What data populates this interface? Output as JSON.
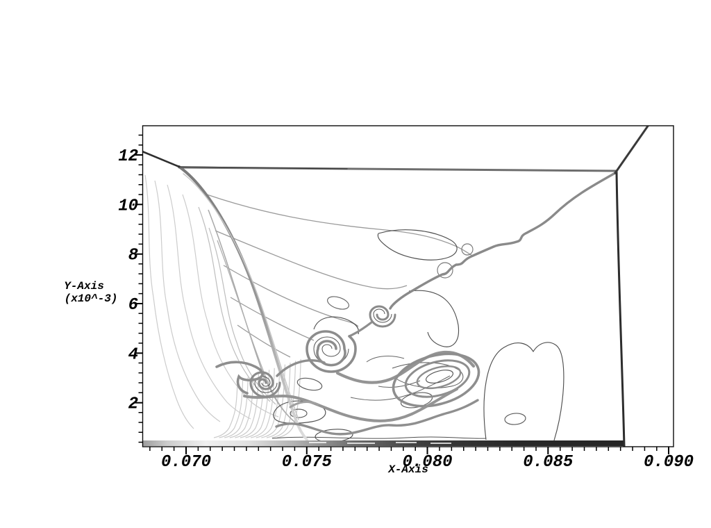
{
  "page": {
    "background": "#ffffff",
    "description": "Grayscale contour plot of a shock-vortex / Richtmyer-Meshkov type flow field with triple point, slip line and rolled-up vortices"
  },
  "axis": {
    "x_label": "X-Axis",
    "y_label": "Y-Axis",
    "y_unit": "(x10^-3)",
    "x_tick_labels": [
      "0.070",
      "0.075",
      "0.080",
      "0.085",
      "0.090"
    ],
    "y_tick_labels": [
      "12",
      "10",
      "8",
      "6",
      "4",
      "2"
    ]
  },
  "colors": {
    "background": "#ffffff",
    "frame": "#0a0a0a",
    "tick": "#000000",
    "thick_contour": "#8e8e8e",
    "thin_contour": "#4f4f4f",
    "light_contour": "#cccccc",
    "strong_shock": "#2f2f2f"
  },
  "chart_data": {
    "type": "heatmap",
    "subtype": "line-contour",
    "title": "",
    "xlabel": "X-Axis",
    "ylabel": "Y-Axis (x10^-3)",
    "xlim": [
      0.0682,
      0.0902
    ],
    "ylim_x1e3": [
      0.2,
      13.2
    ],
    "x_ticks": [
      0.07,
      0.075,
      0.08,
      0.085,
      0.09
    ],
    "x_minor_step": 0.0005,
    "y_ticks_x1e3": [
      12,
      10,
      8,
      6,
      4,
      2
    ],
    "y_minor_step_x1e3": 0.4,
    "grid": false,
    "legend": false,
    "style": "grayscale line contours, no fill",
    "features": [
      {
        "name": "incident-shock-top",
        "shape": "horizontal line",
        "y_x1e3": 11.4,
        "x_range": [
          0.0697,
          0.0878
        ]
      },
      {
        "name": "triple-point",
        "x": 0.0878,
        "y_x1e3": 11.35
      },
      {
        "name": "reflected-shock",
        "shape": "line",
        "from": [
          0.0878,
          11.35
        ],
        "to": [
          0.0892,
          13.2
        ]
      },
      {
        "name": "transverse-shock-right",
        "shape": "near-vertical line",
        "x": 0.0879,
        "y_range_x1e3": [
          0.3,
          11.35
        ]
      },
      {
        "name": "left-oblique-shock",
        "shape": "curved line",
        "from": [
          0.0697,
          11.5
        ],
        "to": [
          0.0746,
          1.0
        ]
      },
      {
        "name": "top-left-shock-segment",
        "shape": "line",
        "from": [
          0.0682,
          12.1
        ],
        "to": [
          0.0697,
          11.5
        ]
      },
      {
        "name": "slip-line",
        "shape": "wavy line with Kelvin-Helmholtz rolls",
        "from": [
          0.0878,
          11.3
        ],
        "to": [
          0.0781,
          5.6
        ]
      },
      {
        "name": "vortex-kh",
        "center": [
          0.0781,
          5.55
        ],
        "radius_x1e3": 0.55
      },
      {
        "name": "vortex-central",
        "center": [
          0.076,
          4.2
        ],
        "radius_x1e3": 1.0
      },
      {
        "name": "vortex-left",
        "center": [
          0.0732,
          2.6
        ],
        "radius_x1e3": 0.65
      },
      {
        "name": "mushroom-cap-rollup",
        "center": [
          0.0804,
          2.9
        ],
        "rx_x1e3": 1.8,
        "ry_x1e3": 1.0
      },
      {
        "name": "expansion-fan",
        "region_x": [
          0.0721,
          0.0748
        ],
        "region_y_x1e3": [
          0.5,
          3.6
        ]
      },
      {
        "name": "bottom-wall-layer",
        "shape": "dark gradient strip",
        "y_x1e3": 0.3,
        "x_range": [
          0.0682,
          0.0879
        ]
      }
    ]
  }
}
